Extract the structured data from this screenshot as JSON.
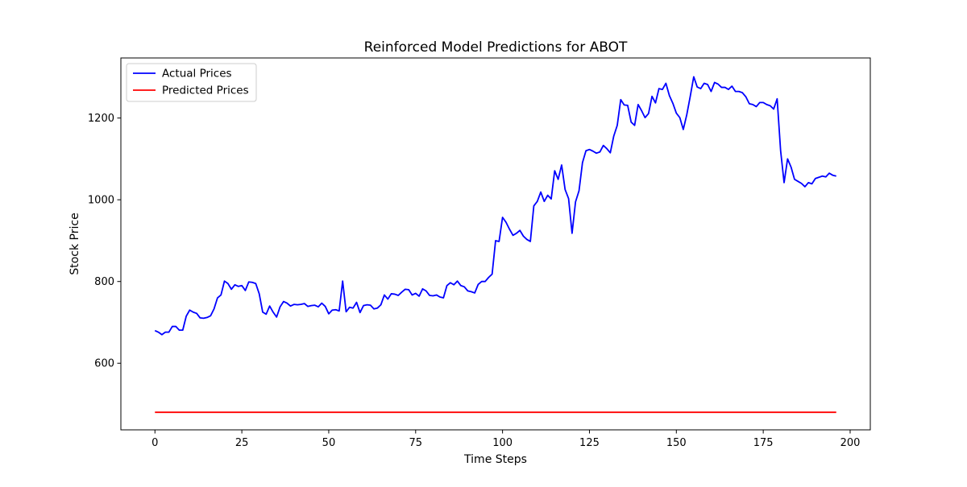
{
  "chart_data": {
    "type": "line",
    "title": "Reinforced Model Predictions for ABOT",
    "xlabel": "Time Steps",
    "ylabel": "Stock Price",
    "xlim": [
      -9.8,
      205.8
    ],
    "ylim": [
      437,
      1347
    ],
    "xticks": [
      0,
      25,
      50,
      75,
      100,
      125,
      150,
      175,
      200
    ],
    "yticks": [
      600,
      800,
      1000,
      1200
    ],
    "grid": false,
    "legend_position": "top-left",
    "colors": {
      "actual": "#0000ff",
      "predicted": "#ff0000",
      "axes": "#000000",
      "legend_border": "#cccccc"
    },
    "series": [
      {
        "name": "Actual Prices",
        "color": "#0000ff",
        "x_start": 0,
        "x_step": 1,
        "values": [
          680,
          676,
          670,
          676,
          676,
          690,
          690,
          681,
          681,
          715,
          730,
          725,
          722,
          711,
          710,
          712,
          716,
          733,
          760,
          767,
          801,
          795,
          781,
          792,
          788,
          790,
          778,
          799,
          798,
          795,
          770,
          725,
          720,
          740,
          725,
          713,
          738,
          751,
          747,
          740,
          744,
          743,
          744,
          746,
          739,
          741,
          742,
          738,
          747,
          739,
          721,
          730,
          731,
          728,
          801,
          726,
          737,
          735,
          749,
          724,
          741,
          743,
          742,
          733,
          735,
          743,
          767,
          757,
          770,
          769,
          766,
          774,
          781,
          780,
          767,
          771,
          764,
          782,
          777,
          766,
          765,
          767,
          762,
          760,
          790,
          797,
          792,
          801,
          790,
          787,
          777,
          775,
          772,
          793,
          800,
          800,
          810,
          818,
          900,
          898,
          957,
          945,
          928,
          913,
          918,
          925,
          911,
          903,
          898,
          985,
          996,
          1019,
          996,
          1011,
          1002,
          1071,
          1050,
          1085,
          1025,
          1003,
          918,
          995,
          1022,
          1091,
          1120,
          1123,
          1119,
          1114,
          1117,
          1133,
          1125,
          1115,
          1156,
          1182,
          1245,
          1232,
          1231,
          1190,
          1182,
          1233,
          1218,
          1201,
          1211,
          1253,
          1237,
          1272,
          1270,
          1285,
          1255,
          1236,
          1212,
          1201,
          1172,
          1208,
          1253,
          1301,
          1276,
          1272,
          1285,
          1282,
          1265,
          1287,
          1283,
          1275,
          1275,
          1270,
          1278,
          1265,
          1265,
          1262,
          1252,
          1235,
          1233,
          1228,
          1238,
          1238,
          1233,
          1230,
          1222,
          1247,
          1120,
          1042,
          1100,
          1080,
          1050,
          1045,
          1040,
          1032,
          1042,
          1039,
          1052,
          1055,
          1058,
          1056,
          1065,
          1060,
          1058
        ]
      },
      {
        "name": "Predicted Prices",
        "color": "#ff0000",
        "x_start": 0,
        "x_step": 1,
        "count": 197,
        "constant_value": 480
      }
    ]
  }
}
